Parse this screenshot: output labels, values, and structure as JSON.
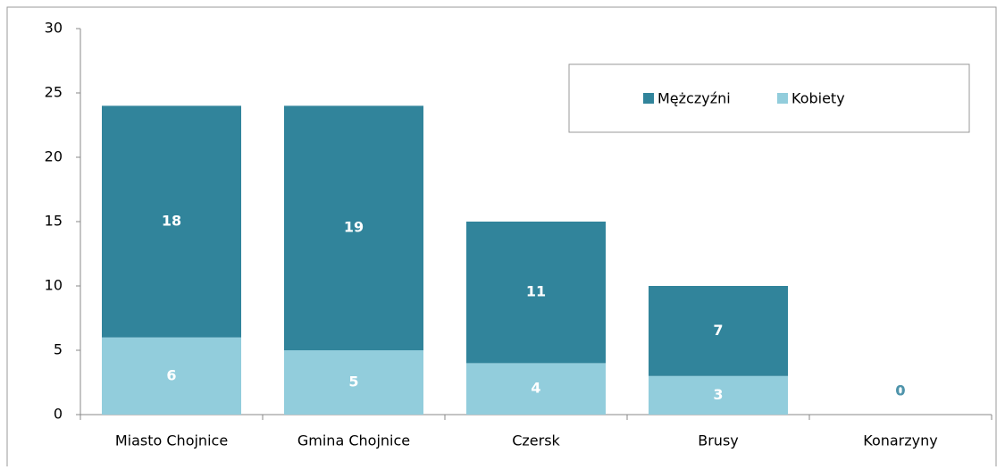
{
  "chart_data": {
    "type": "stacked_bar",
    "categories": [
      "Miasto Chojnice",
      "Gmina Chojnice",
      "Czersk",
      "Brusy",
      "Konarzyny"
    ],
    "series": [
      {
        "name": "Kobiety",
        "color": "#92cddc",
        "values": [
          6,
          5,
          4,
          3,
          0
        ]
      },
      {
        "name": "Mężczyźni",
        "color": "#31849b",
        "values": [
          18,
          19,
          11,
          7,
          0
        ]
      }
    ],
    "ylim": [
      0,
      30
    ],
    "yticks": [
      0,
      5,
      10,
      15,
      20,
      25,
      30
    ],
    "grid": false,
    "legend": "top-right"
  }
}
